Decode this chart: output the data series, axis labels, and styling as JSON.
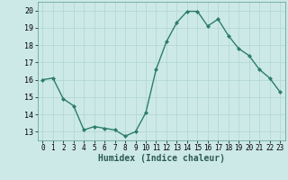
{
  "x": [
    0,
    1,
    2,
    3,
    4,
    5,
    6,
    7,
    8,
    9,
    10,
    11,
    12,
    13,
    14,
    15,
    16,
    17,
    18,
    19,
    20,
    21,
    22,
    23
  ],
  "y": [
    16.0,
    16.1,
    14.9,
    14.5,
    13.1,
    13.3,
    13.2,
    13.1,
    12.75,
    13.0,
    14.1,
    16.6,
    18.2,
    19.3,
    19.95,
    19.95,
    19.1,
    19.5,
    18.55,
    17.8,
    17.4,
    16.6,
    16.1,
    15.3
  ],
  "line_color": "#2d7d6e",
  "marker": "D",
  "markersize": 2.0,
  "linewidth": 1.0,
  "bg_color": "#cce9e7",
  "grid_color": "#b0d5d2",
  "xlabel": "Humidex (Indice chaleur)",
  "xlim": [
    -0.5,
    23.5
  ],
  "ylim": [
    12.5,
    20.5
  ],
  "yticks": [
    13,
    14,
    15,
    16,
    17,
    18,
    19,
    20
  ],
  "xticks": [
    0,
    1,
    2,
    3,
    4,
    5,
    6,
    7,
    8,
    9,
    10,
    11,
    12,
    13,
    14,
    15,
    16,
    17,
    18,
    19,
    20,
    21,
    22,
    23
  ],
  "tick_labelsize": 5.5,
  "xlabel_fontsize": 7.0,
  "ytick_labelsize": 6.0
}
